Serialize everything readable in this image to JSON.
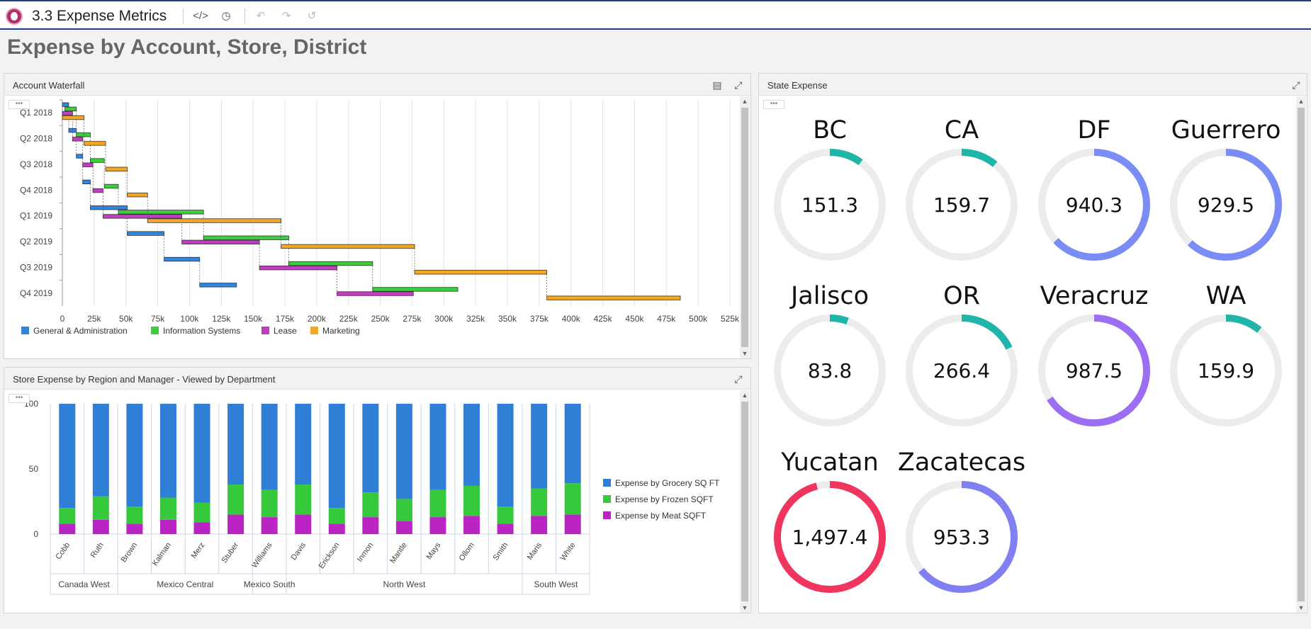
{
  "app": {
    "title": "3.3 Expense Metrics"
  },
  "toolbar": {
    "icons": [
      "code-icon",
      "history-icon",
      "undo-icon",
      "redo-icon",
      "reset-icon"
    ]
  },
  "page": {
    "title": "Expense by Account, Store, District"
  },
  "waterfall_panel": {
    "title": "Account Waterfall",
    "menu_dots": "•••",
    "legend": [
      {
        "label": "General & Administration",
        "color": "#2e86de"
      },
      {
        "label": "Information Systems",
        "color": "#3ccf3c"
      },
      {
        "label": "Lease",
        "color": "#c23cc2"
      },
      {
        "label": "Marketing",
        "color": "#f5a623"
      }
    ]
  },
  "store_panel": {
    "title": "Store Expense by Region and Manager - Viewed by Department",
    "menu_dots": "•••",
    "legend": [
      {
        "label": "Expense by Grocery SQ FT",
        "color": "#2f7fd6"
      },
      {
        "label": "Expense by Frozen SQFT",
        "color": "#36c93c"
      },
      {
        "label": "Expense by Meat SQFT",
        "color": "#bb24c4"
      }
    ]
  },
  "state_panel": {
    "title": "State Expense",
    "menu_dots": "•••",
    "gauges": [
      {
        "state": "BC",
        "value": "151.3",
        "fraction": 0.1,
        "color": "#1fb5a8"
      },
      {
        "state": "CA",
        "value": "159.7",
        "fraction": 0.11,
        "color": "#1fb5a8"
      },
      {
        "state": "DF",
        "value": "940.3",
        "fraction": 0.63,
        "color": "#7a8cf5"
      },
      {
        "state": "Guerrero",
        "value": "929.5",
        "fraction": 0.62,
        "color": "#7a8cf5"
      },
      {
        "state": "Jalisco",
        "value": "83.8",
        "fraction": 0.055,
        "color": "#1fb5a8"
      },
      {
        "state": "OR",
        "value": "266.4",
        "fraction": 0.18,
        "color": "#1fb5a8"
      },
      {
        "state": "Veracruz",
        "value": "987.5",
        "fraction": 0.66,
        "color": "#9b6ef3"
      },
      {
        "state": "WA",
        "value": "159.9",
        "fraction": 0.11,
        "color": "#1fb5a8"
      },
      {
        "state": "Yucatan",
        "value": "1,497.4",
        "fraction": 0.96,
        "color": "#f0365e"
      },
      {
        "state": "Zacatecas",
        "value": "953.3",
        "fraction": 0.64,
        "color": "#8080f2"
      }
    ]
  },
  "chart_data": [
    {
      "type": "bar",
      "subtype": "waterfall-horizontal",
      "title": "Account Waterfall",
      "categories": [
        "Q1 2018",
        "Q2 2018",
        "Q3 2018",
        "Q4 2018",
        "Q1 2019",
        "Q2 2019",
        "Q3 2019",
        "Q4 2019"
      ],
      "x_ticks": [
        "0",
        "25k",
        "50k",
        "75k",
        "100k",
        "125k",
        "150k",
        "175k",
        "200k",
        "225k",
        "250k",
        "275k",
        "300k",
        "325k",
        "350k",
        "375k",
        "400k",
        "425k",
        "450k",
        "475k",
        "500k",
        "525k"
      ],
      "xlim": [
        0,
        530000
      ],
      "series": [
        {
          "name": "General & Administration",
          "color": "#2e86de",
          "ranges": [
            [
              0,
              5000
            ],
            [
              5000,
              11000
            ],
            [
              11000,
              16000
            ],
            [
              16000,
              22000
            ],
            [
              22000,
              51000
            ],
            [
              51000,
              80000
            ],
            [
              80000,
              108000
            ],
            [
              108000,
              137000
            ]
          ]
        },
        {
          "name": "Information Systems",
          "color": "#3ccf3c",
          "ranges": [
            [
              2000,
              11000
            ],
            [
              11000,
              22000
            ],
            [
              22000,
              33000
            ],
            [
              33000,
              44000
            ],
            [
              44000,
              111000
            ],
            [
              111000,
              178000
            ],
            [
              178000,
              244000
            ],
            [
              244000,
              311000
            ]
          ]
        },
        {
          "name": "Lease",
          "color": "#c23cc2",
          "ranges": [
            [
              0,
              8000
            ],
            [
              8000,
              16000
            ],
            [
              16000,
              24000
            ],
            [
              24000,
              32000
            ],
            [
              32000,
              94000
            ],
            [
              94000,
              155000
            ],
            [
              155000,
              216000
            ],
            [
              216000,
              276000
            ]
          ]
        },
        {
          "name": "Marketing",
          "color": "#f5a623",
          "ranges": [
            [
              0,
              17000
            ],
            [
              17000,
              34000
            ],
            [
              34000,
              51000
            ],
            [
              51000,
              67000
            ],
            [
              67000,
              172000
            ],
            [
              172000,
              277000
            ],
            [
              277000,
              381000
            ],
            [
              381000,
              486000
            ]
          ]
        }
      ]
    },
    {
      "type": "bar",
      "subtype": "stacked-100",
      "title": "Store Expense by Region and Manager - Viewed by Department",
      "categories": [
        "Cobb",
        "Ruth",
        "Brown",
        "Kalman",
        "Merz",
        "Stuber",
        "Williams",
        "Davis",
        "Erickson",
        "Inmon",
        "Mantle",
        "Mays",
        "Ollom",
        "Smith",
        "Maris",
        "White"
      ],
      "groups": [
        {
          "name": "Canada West",
          "count": 2
        },
        {
          "name": "Mexico Central",
          "count": 4
        },
        {
          "name": "Mexico South",
          "count": 1
        },
        {
          "name": "North West",
          "count": 7
        },
        {
          "name": "South West",
          "count": 2
        }
      ],
      "y_ticks": [
        "0",
        "50",
        "100"
      ],
      "ylim": [
        0,
        100
      ],
      "series": [
        {
          "name": "Expense by Meat SQFT",
          "color": "#bb24c4",
          "values": [
            8,
            11,
            8,
            11,
            9,
            15,
            13,
            15,
            8,
            13,
            10,
            13,
            14,
            8,
            14,
            15
          ]
        },
        {
          "name": "Expense by Frozen SQFT",
          "color": "#36c93c",
          "values": [
            12,
            18,
            13,
            17,
            15,
            23,
            21,
            23,
            12,
            19,
            17,
            21,
            23,
            13,
            21,
            24
          ]
        },
        {
          "name": "Expense by Grocery SQ FT",
          "color": "#2f7fd6",
          "values": [
            80,
            71,
            79,
            72,
            76,
            62,
            66,
            62,
            80,
            68,
            73,
            66,
            63,
            79,
            65,
            61
          ]
        }
      ]
    }
  ]
}
